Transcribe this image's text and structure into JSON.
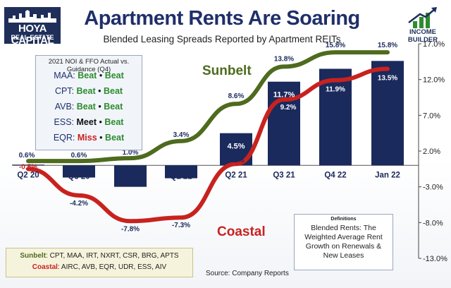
{
  "header": {
    "title": "Apartment Rents Are Soaring",
    "subtitle": "Blended Leasing Spreads Reported by Apartment REITs",
    "logo_line1": "HOYA CAPITAL",
    "logo_line2": "REAL ESTATE",
    "brand_right": "INCOME BUILDER"
  },
  "guidance": {
    "heading": "2021 NOI & FFO Actual vs. Guidance (Q4)",
    "rows": [
      {
        "ticker": "MAA:",
        "noi": "Beat",
        "sep": "•",
        "ffo": "Beat"
      },
      {
        "ticker": "CPT:",
        "noi": "Beat",
        "sep": "•",
        "ffo": "Beat"
      },
      {
        "ticker": "AVB:",
        "noi": "Beat",
        "sep": "•",
        "ffo": "Beat"
      },
      {
        "ticker": "ESS:",
        "noi": "Meet",
        "sep": "•",
        "ffo": "Beat"
      },
      {
        "ticker": "EQR:",
        "noi": "Miss",
        "sep": "•",
        "ffo": "Beat"
      }
    ]
  },
  "definitions": {
    "title": "Definitions",
    "body": "Blended Rents: The Weighted Average Rent Growth on Renewals & New Leases"
  },
  "groups": {
    "sunbelt_label": "Sunbelt",
    "sunbelt_members": ": CPT, MAA, IRT, NXRT, CSR, BRG, APTS",
    "coastal_label": "Coastal",
    "coastal_members": ": AIRC, AVB, EQR, UDR, ESS, AIV"
  },
  "source": "Source: Company Reports",
  "labels": {
    "sunbelt": "Sunbelt",
    "coastal": "Coastal"
  },
  "colors": {
    "bar": "#1b2a5c",
    "sunbelt": "#4e6b1e",
    "coastal": "#c8221f",
    "title": "#1f2f6a",
    "beat": "#2e8b2e",
    "miss": "#c8221f"
  },
  "chart_data": {
    "type": "bar",
    "categories": [
      "Q2 20",
      "Q3 20",
      "Q4 20",
      "Q1 21",
      "Q2 21",
      "Q3 21",
      "Q4 22",
      "Jan 22"
    ],
    "ylim": [
      -13,
      17
    ],
    "yticks": [
      17,
      12,
      7,
      2,
      -3,
      -8,
      -13
    ],
    "ytick_labels": [
      "17.0%",
      "12.0%",
      "7.0%",
      "2.0%",
      "-3.0%",
      "-8.0%",
      "-13.0%"
    ],
    "grid": false,
    "series": [
      {
        "type": "bar",
        "values": [
          0.1,
          -1.7,
          -3.0,
          -1.8,
          4.5,
          11.7,
          13.5,
          14.6
        ],
        "labels": [
          "",
          "",
          "",
          "",
          "4.5%",
          "11.7%",
          "",
          ""
        ]
      },
      {
        "name": "Sunbelt",
        "type": "line",
        "values": [
          0.6,
          0.6,
          1.0,
          3.4,
          8.6,
          13.8,
          15.8,
          15.8
        ],
        "labels": [
          "0.6%",
          "0.6%",
          "1.0%",
          "3.4%",
          "8.6%",
          "13.8%",
          "15.8%",
          "15.8%"
        ]
      },
      {
        "name": "Coastal",
        "type": "line",
        "values": [
          -0.5,
          -4.2,
          -7.8,
          -7.3,
          0.2,
          9.2,
          11.9,
          13.5
        ],
        "labels": [
          "-0.5%",
          "-4.2%",
          "-7.8%",
          "-7.3%",
          "0.2%",
          "9.2%",
          "11.9%",
          "13.5%"
        ]
      }
    ]
  }
}
